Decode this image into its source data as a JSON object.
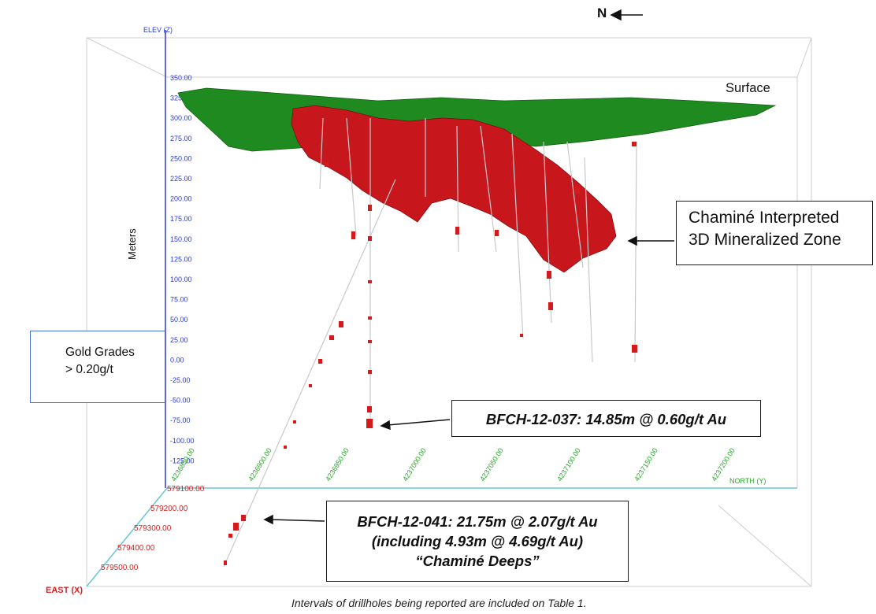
{
  "labels": {
    "surface": "Surface",
    "meters": "Meters",
    "north_symbol": "N",
    "caption": "Intervals of drillholes being reported are included on Table 1."
  },
  "callouts": {
    "zone_line1": "Chaminé Interpreted",
    "zone_line2": "3D Mineralized Zone",
    "hole037": "BFCH-12-037: 14.85m @ 0.60g/t Au",
    "hole041_line1": "BFCH-12-041: 21.75m @ 2.07g/t Au",
    "hole041_line2": "(including 4.93m @ 4.69g/t Au)",
    "hole041_line3": "“Chaminé Deeps”"
  },
  "legend": {
    "line1": "Gold Grades",
    "line2": "> 0.20g/t"
  },
  "axes": {
    "elev_title": "ELEV (Z)",
    "elev_ticks": [
      "350.00",
      "325.00",
      "300.00",
      "275.00",
      "250.00",
      "225.00",
      "200.00",
      "175.00",
      "150.00",
      "125.00",
      "100.00",
      "75.00",
      "50.00",
      "25.00",
      "0.00",
      "-25.00",
      "-50.00",
      "-75.00",
      "-100.00",
      "-125.00"
    ],
    "east_title": "EAST (X)",
    "east_ticks": [
      "579100.00",
      "579200.00",
      "579300.00",
      "579400.00",
      "579500.00"
    ],
    "north_title": "NORTH (Y)",
    "north_ticks": [
      "4236850.00",
      "4236900.00",
      "4236950.00",
      "4237000.00",
      "4237050.00",
      "4237100.00",
      "4237150.00",
      "4237200.00"
    ]
  },
  "colors": {
    "surface": "#1f8a1f",
    "mineral_zone": "#c8161d",
    "grade_marks": "#d41a1a",
    "elev_axis": "#2b3bd1",
    "east_axis": "#d42020",
    "north_axis": "#2aa52a",
    "drillhole": "#c9c9c9",
    "box": "#cfcfcf"
  }
}
